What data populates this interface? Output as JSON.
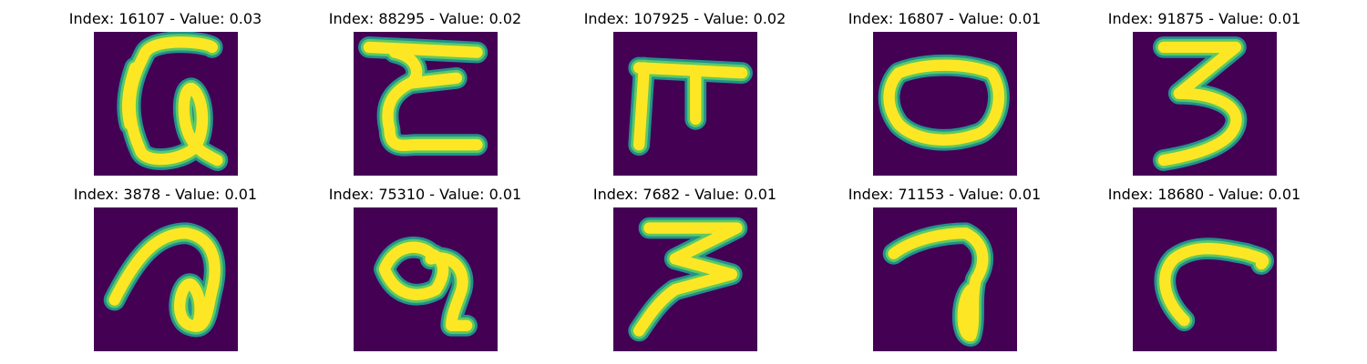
{
  "colors": {
    "background": "#440154",
    "stroke_core": "#fde725",
    "stroke_mid": "#5ec962",
    "stroke_edge": "#21918c"
  },
  "panels": [
    {
      "title": "Index: 16107 - Value: 0.03",
      "glyph": "handwritten-alpha-q"
    },
    {
      "title": "Index: 88295 - Value: 0.02",
      "glyph": "handwritten-epsilon"
    },
    {
      "title": "Index: 107925 - Value: 0.02",
      "glyph": "handwritten-pi-f"
    },
    {
      "title": "Index: 16807 - Value: 0.01",
      "glyph": "handwritten-zero"
    },
    {
      "title": "Index: 91875 - Value: 0.01",
      "glyph": "handwritten-three"
    },
    {
      "title": "Index: 3878 - Value: 0.01",
      "glyph": "handwritten-loop-a"
    },
    {
      "title": "Index: 75310 - Value: 0.01",
      "glyph": "handwritten-blob-nine"
    },
    {
      "title": "Index: 7682 - Value: 0.01",
      "glyph": "handwritten-three"
    },
    {
      "title": "Index: 71153 - Value: 0.01",
      "glyph": "handwritten-seven-loop"
    },
    {
      "title": "Index: 18680 - Value: 0.01",
      "glyph": "handwritten-hook-r"
    }
  ]
}
